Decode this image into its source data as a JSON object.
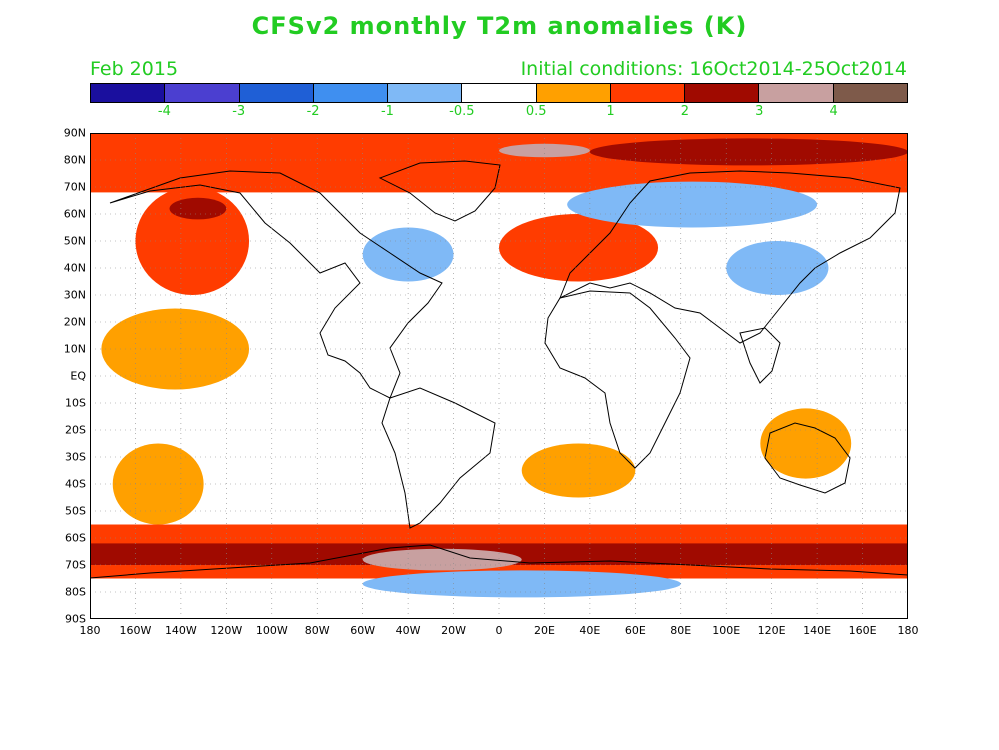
{
  "title": "CFSv2 monthly T2m anomalies (K)",
  "valid_month": "Feb 2015",
  "initial_conditions": "Initial conditions: 16Oct2014-25Oct2014",
  "colors": {
    "text_green": "#22cc22",
    "scale": [
      "#1a0f9e",
      "#4b3fd0",
      "#1f5fd6",
      "#3f8ff0",
      "#7fb9f6",
      "#ffffff",
      "#ffa000",
      "#ff3c00",
      "#a00a00",
      "#c8a0a0",
      "#7e5a4a"
    ]
  },
  "colorbar_labels": [
    "-4",
    "-3",
    "-2",
    "-1",
    "-0.5",
    "0.5",
    "1",
    "2",
    "3",
    "4"
  ],
  "lat_labels": [
    "90N",
    "80N",
    "70N",
    "60N",
    "50N",
    "40N",
    "30N",
    "20N",
    "10N",
    "EQ",
    "10S",
    "20S",
    "30S",
    "40S",
    "50S",
    "60S",
    "70S",
    "80S",
    "90S"
  ],
  "lon_labels": [
    "180",
    "160W",
    "140W",
    "120W",
    "100W",
    "80W",
    "60W",
    "40W",
    "20W",
    "0",
    "20E",
    "40E",
    "60E",
    "80E",
    "100E",
    "120E",
    "140E",
    "160E",
    "180"
  ],
  "map": {
    "lon_range": [
      -180,
      180
    ],
    "lat_range": [
      -90,
      90
    ],
    "grid": "dotted 10-degree",
    "anomaly_regions": [
      {
        "name": "arctic-warm",
        "level": 2,
        "lons": [
          -180,
          180
        ],
        "lats": [
          68,
          90
        ]
      },
      {
        "name": "arctic-strong",
        "level": 3,
        "lons": [
          40,
          180
        ],
        "lats": [
          78,
          88
        ]
      },
      {
        "name": "arctic-extreme",
        "level": 4,
        "lons": [
          0,
          40
        ],
        "lats": [
          81,
          86
        ]
      },
      {
        "name": "western-north-america",
        "level": 2,
        "lons": [
          -160,
          -110
        ],
        "lats": [
          30,
          70
        ]
      },
      {
        "name": "alaska-strong",
        "level": 3,
        "lons": [
          -145,
          -120
        ],
        "lats": [
          58,
          66
        ]
      },
      {
        "name": "north-pacific-tropical",
        "level": 1,
        "lons": [
          -175,
          -110
        ],
        "lats": [
          -5,
          25
        ]
      },
      {
        "name": "eastern-north-america",
        "level": -1,
        "lons": [
          -60,
          -20
        ],
        "lats": [
          35,
          55
        ]
      },
      {
        "name": "eurasia-warm",
        "level": 2,
        "lons": [
          0,
          70
        ],
        "lats": [
          35,
          60
        ]
      },
      {
        "name": "siberia-cool",
        "level": -1,
        "lons": [
          30,
          140
        ],
        "lats": [
          55,
          72
        ]
      },
      {
        "name": "east-asia-cool",
        "level": -1,
        "lons": [
          100,
          145
        ],
        "lats": [
          30,
          50
        ]
      },
      {
        "name": "australia-warm",
        "level": 1,
        "lons": [
          115,
          155
        ],
        "lats": [
          -38,
          -12
        ]
      },
      {
        "name": "south-pacific",
        "level": 1,
        "lons": [
          -170,
          -130
        ],
        "lats": [
          -55,
          -25
        ]
      },
      {
        "name": "southern-ocean-warm",
        "level": 2,
        "lons": [
          -180,
          180
        ],
        "lats": [
          -75,
          -55
        ]
      },
      {
        "name": "southern-ocean-strong",
        "level": 3,
        "lons": [
          -180,
          180
        ],
        "lats": [
          -70,
          -62
        ]
      },
      {
        "name": "antarctic-extreme",
        "level": 4,
        "lons": [
          -60,
          10
        ],
        "lats": [
          -72,
          -64
        ]
      },
      {
        "name": "antarctica-cool",
        "level": -1,
        "lons": [
          -60,
          80
        ],
        "lats": [
          -82,
          -72
        ]
      },
      {
        "name": "south-atlantic",
        "level": 1,
        "lons": [
          10,
          60
        ],
        "lats": [
          -45,
          -25
        ]
      }
    ]
  }
}
